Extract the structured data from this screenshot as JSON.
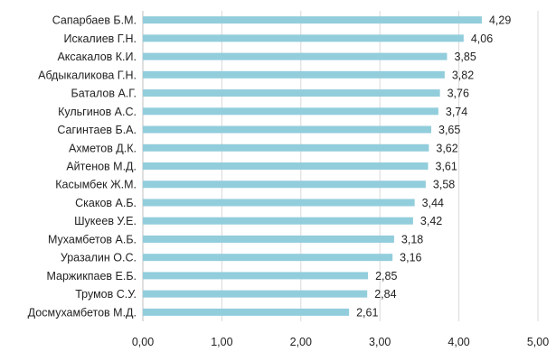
{
  "chart_data": {
    "type": "bar",
    "orientation": "horizontal",
    "categories": [
      "Сапарбаев Б.М.",
      "Искалиев Г.Н.",
      "Аксакалов К.И.",
      "Абдыкаликова Г.Н.",
      "Баталов А.Г.",
      "Кульгинов А.С.",
      "Сагинтаев Б.А.",
      "Ахметов Д.К.",
      "Айтенов М.Д.",
      "Касымбек Ж.М.",
      "Скаков А.Б.",
      "Шукеев У.Е.",
      "Мухамбетов А.Б.",
      "Уразалин О.С.",
      "Маржикпаев Е.Б.",
      "Трумов С.У.",
      "Досмухамбетов М.Д."
    ],
    "values": [
      4.29,
      4.06,
      3.85,
      3.82,
      3.76,
      3.74,
      3.65,
      3.62,
      3.61,
      3.58,
      3.44,
      3.42,
      3.18,
      3.16,
      2.85,
      2.84,
      2.61
    ],
    "value_labels": [
      "4,29",
      "4,06",
      "3,85",
      "3,82",
      "3,76",
      "3,74",
      "3,65",
      "3,62",
      "3,61",
      "3,58",
      "3,44",
      "3,42",
      "3,18",
      "3,16",
      "2,85",
      "2,84",
      "2,61"
    ],
    "x_ticks": [
      0,
      1,
      2,
      3,
      4,
      5
    ],
    "x_tick_labels": [
      "0,00",
      "1,00",
      "2,00",
      "3,00",
      "4,00",
      "5,00"
    ],
    "xlim": [
      0,
      5
    ],
    "title": "",
    "xlabel": "",
    "ylabel": "",
    "grid": "vertical",
    "legend": "none",
    "bar_color": "#92CDDC",
    "grid_color": "#D9D9D9",
    "text_color": "#222222"
  }
}
